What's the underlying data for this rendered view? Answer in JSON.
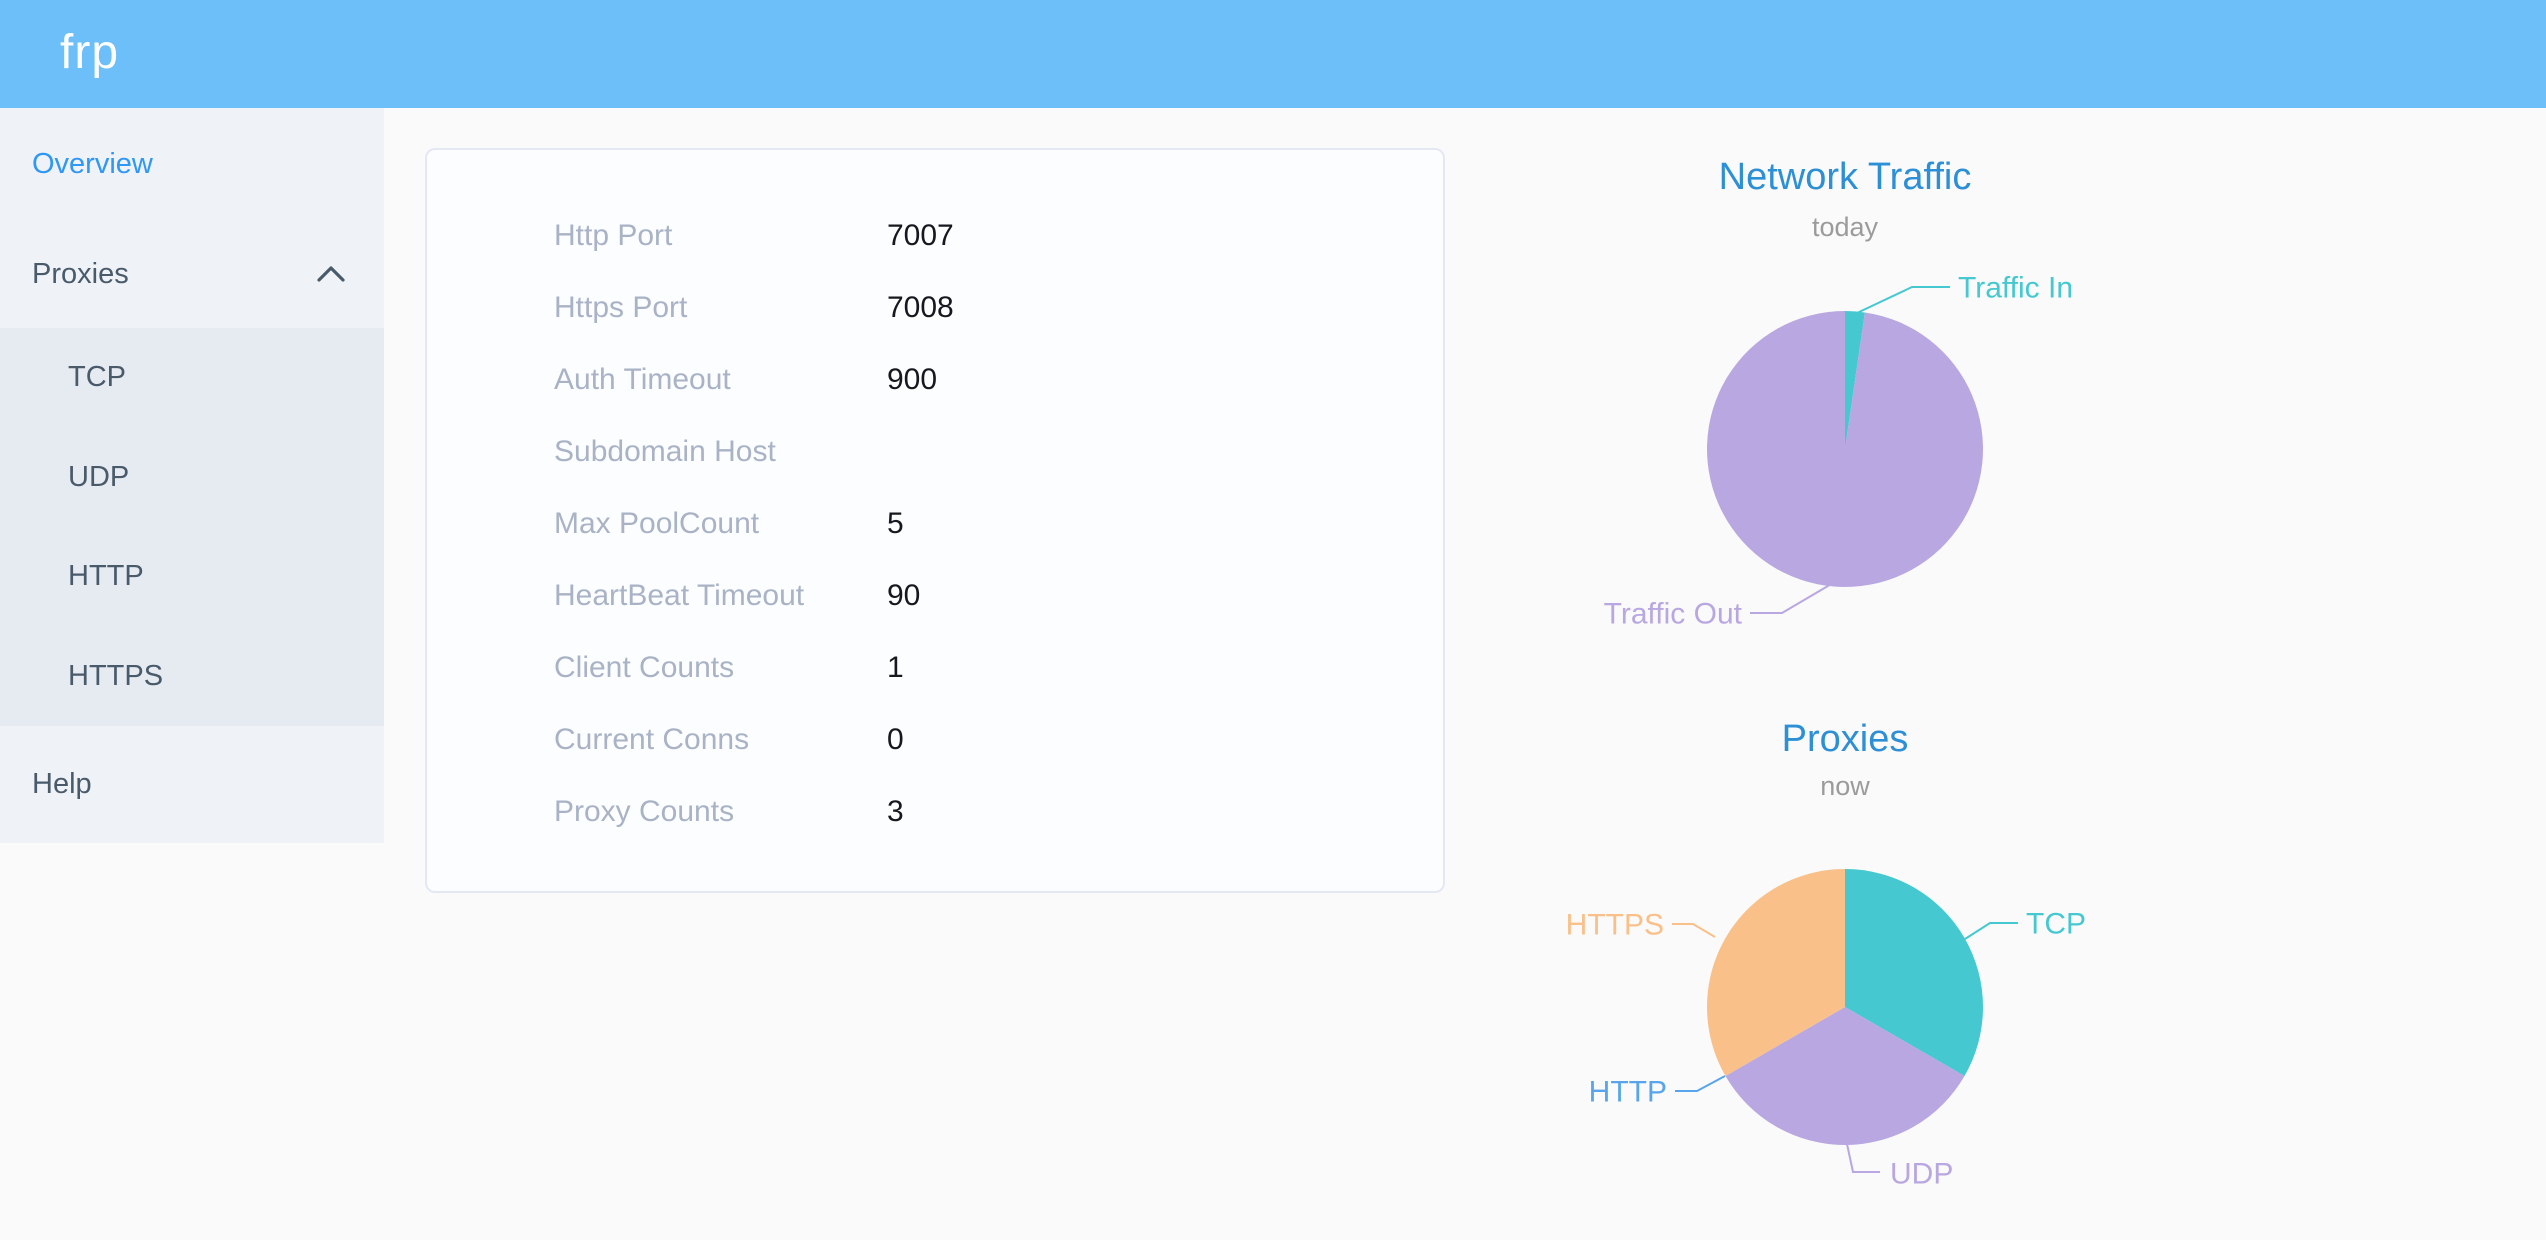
{
  "header": {
    "logo": "frp"
  },
  "sidebar": {
    "items": [
      {
        "label": "Overview",
        "active": true
      },
      {
        "label": "Proxies",
        "expanded": true,
        "children": [
          "TCP",
          "UDP",
          "HTTP",
          "HTTPS"
        ]
      },
      {
        "label": "Help"
      }
    ]
  },
  "overview_table": {
    "rows": [
      {
        "label": "Http Port",
        "value": "7007"
      },
      {
        "label": "Https Port",
        "value": "7008"
      },
      {
        "label": "Auth Timeout",
        "value": "900"
      },
      {
        "label": "Subdomain Host",
        "value": ""
      },
      {
        "label": "Max PoolCount",
        "value": "5"
      },
      {
        "label": "HeartBeat Timeout",
        "value": "90"
      },
      {
        "label": "Client Counts",
        "value": "1"
      },
      {
        "label": "Current Conns",
        "value": "0"
      },
      {
        "label": "Proxy Counts",
        "value": "3"
      }
    ]
  },
  "chart_data": [
    {
      "type": "pie",
      "title": "Network Traffic",
      "subtitle": "today",
      "legend_position": "callout-labels",
      "values_are_percent_estimates": true,
      "series": [
        {
          "name": "Traffic In",
          "value": 2.3,
          "color": "#45c8d0"
        },
        {
          "name": "Traffic Out",
          "value": 97.7,
          "color": "#b8a7e1"
        }
      ]
    },
    {
      "type": "pie",
      "title": "Proxies",
      "subtitle": "now",
      "legend_position": "callout-labels",
      "series": [
        {
          "name": "TCP",
          "value": 1,
          "color": "#45c8d0"
        },
        {
          "name": "UDP",
          "value": 1,
          "color": "#b8a7e1"
        },
        {
          "name": "HTTP",
          "value": 0,
          "color": "#58a5ec"
        },
        {
          "name": "HTTPS",
          "value": 1,
          "color": "#f9c08a"
        }
      ]
    }
  ],
  "colors": {
    "header_bg": "#6cbff8",
    "sidebar_bg": "#eff2f7",
    "submenu_bg": "#e6eaf1",
    "active_menu_item": "#2f97f5",
    "menu_text": "#495a6b",
    "content_bg": "#fafafa",
    "card_bg": "#fcfdfe",
    "card_border": "#e3e8f2",
    "table_label": "#a9b3c5",
    "table_value": "#15181e",
    "chart_title": "#2d8fd6",
    "chart_subtitle": "#9b9b9b"
  }
}
